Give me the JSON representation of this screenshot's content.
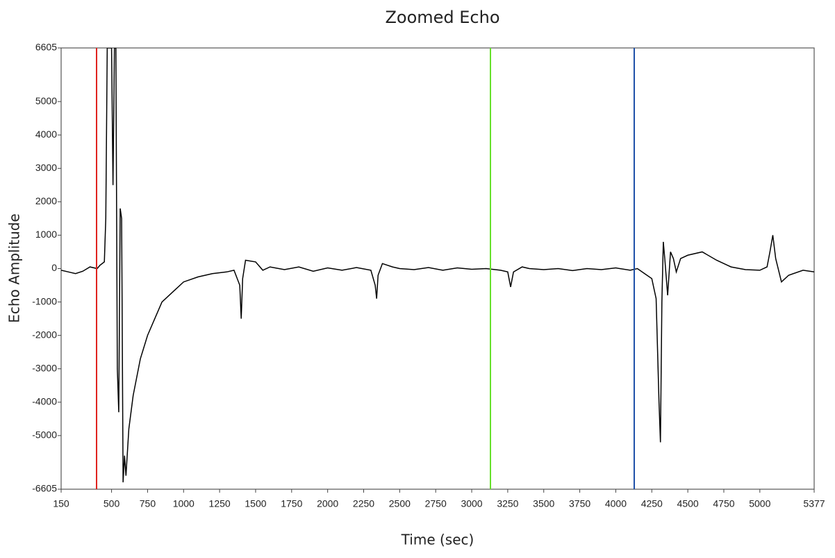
{
  "chart_data": {
    "type": "line",
    "title": "Zoomed Echo",
    "x_label": "Time (sec)",
    "y_label": "Echo Amplitude",
    "x": [
      150,
      200,
      250,
      300,
      350,
      400,
      420,
      450,
      460,
      470,
      480,
      500,
      510,
      520,
      530,
      540,
      550,
      560,
      570,
      580,
      590,
      600,
      620,
      650,
      700,
      750,
      800,
      850,
      900,
      950,
      1000,
      1100,
      1200,
      1300,
      1350,
      1390,
      1400,
      1410,
      1430,
      1500,
      1550,
      1600,
      1700,
      1800,
      1900,
      2000,
      2100,
      2200,
      2300,
      2330,
      2340,
      2350,
      2380,
      2450,
      2500,
      2600,
      2700,
      2800,
      2900,
      3000,
      3100,
      3200,
      3250,
      3270,
      3290,
      3350,
      3400,
      3500,
      3600,
      3700,
      3800,
      3900,
      4000,
      4100,
      4150,
      4200,
      4250,
      4280,
      4300,
      4310,
      4320,
      4330,
      4340,
      4360,
      4380,
      4400,
      4420,
      4450,
      4500,
      4600,
      4700,
      4800,
      4900,
      5000,
      5050,
      5070,
      5090,
      5110,
      5150,
      5200,
      5300,
      5377
    ],
    "series": [
      {
        "color": "#000000",
        "values": [
          -50,
          -100,
          -150,
          -80,
          50,
          0,
          100,
          200,
          1500,
          6605,
          6605,
          6605,
          2500,
          6605,
          6605,
          -3000,
          -4300,
          1800,
          1500,
          -6400,
          -5600,
          -6200,
          -4800,
          -3800,
          -2700,
          -2000,
          -1500,
          -1000,
          -800,
          -600,
          -400,
          -250,
          -150,
          -100,
          -50,
          -500,
          -1500,
          -300,
          250,
          200,
          -50,
          50,
          -30,
          50,
          -80,
          20,
          -50,
          30,
          -50,
          -500,
          -900,
          -200,
          150,
          50,
          0,
          -30,
          30,
          -50,
          20,
          -20,
          0,
          -50,
          -100,
          -550,
          -100,
          50,
          0,
          -30,
          0,
          -60,
          0,
          -30,
          20,
          -50,
          0,
          -150,
          -300,
          -900,
          -4000,
          -5200,
          -1000,
          800,
          300,
          -800,
          500,
          300,
          -100,
          300,
          400,
          500,
          250,
          50,
          -30,
          -50,
          50,
          500,
          1000,
          300,
          -400,
          -200,
          -50,
          -100
        ]
      }
    ],
    "cursors": [
      {
        "x": 396,
        "color": "#e0201c"
      },
      {
        "x": 3130,
        "color": "#66e02a"
      },
      {
        "x": 4128,
        "color": "#1c4fa8"
      }
    ],
    "xlim": [
      150,
      5377
    ],
    "ylim": [
      -6605,
      6605
    ],
    "xticks": [
      150,
      500,
      750,
      1000,
      1250,
      1500,
      1750,
      2000,
      2250,
      2500,
      2750,
      3000,
      3250,
      3500,
      3750,
      4000,
      4250,
      4500,
      4750,
      5000,
      5377
    ],
    "yticks": [
      -6605,
      -5000,
      -4000,
      -3000,
      -2000,
      -1000,
      0,
      1000,
      2000,
      3000,
      4000,
      5000,
      6605
    ]
  }
}
